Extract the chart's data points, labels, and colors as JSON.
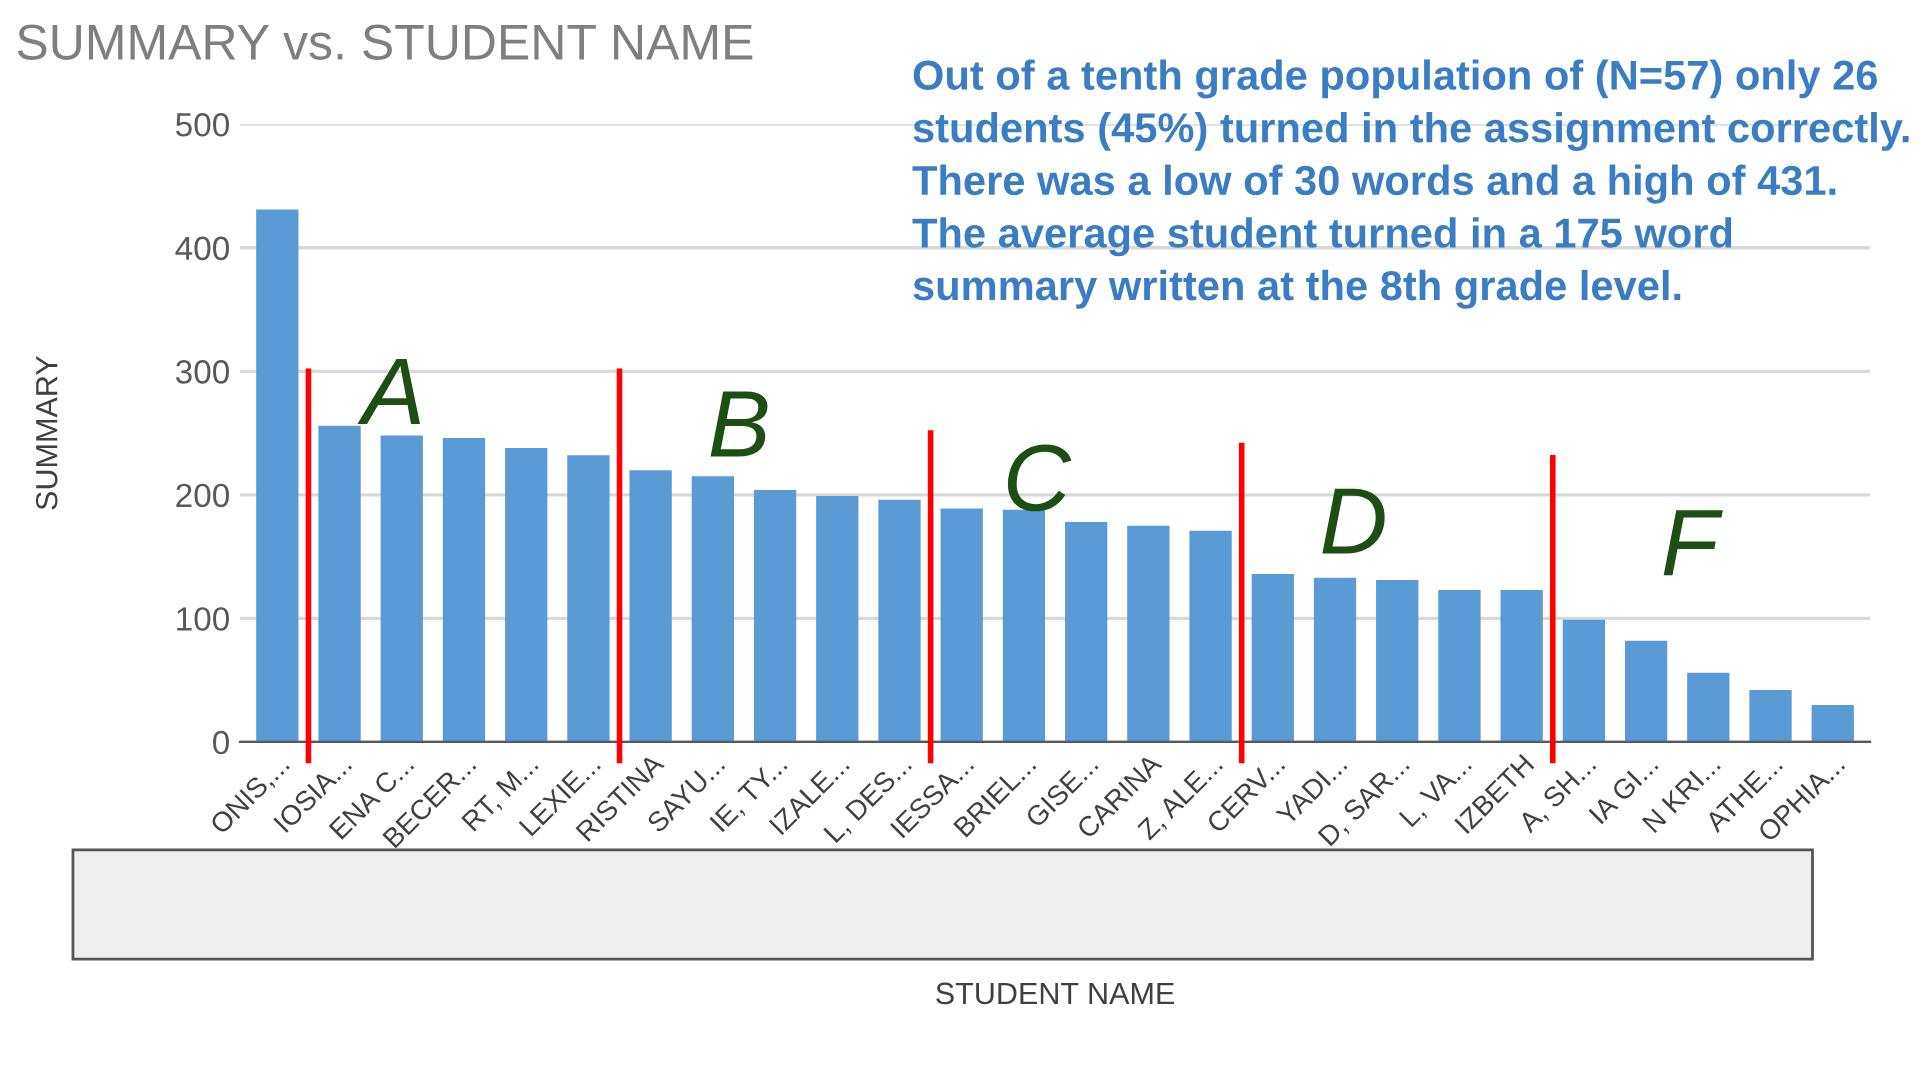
{
  "chart_data": {
    "type": "bar",
    "title": "SUMMARY vs. STUDENT NAME",
    "xlabel": "STUDENT NAME",
    "ylabel": "SUMMARY",
    "categories": [
      "ONIS,...",
      "IOSIA...",
      "ENA C...",
      "BECER...",
      "RT, M...",
      "LEXIE...",
      "RISTINA",
      "SAYU...",
      "IE, TY...",
      "IZALE...",
      "L, DES...",
      "IESSA...",
      "BRIEL...",
      "GISE...",
      "CARINA",
      "Z, ALE...",
      "CERV...",
      "YADI...",
      "D, SAR...",
      "L, VA...",
      "IZBETH",
      "A, SH...",
      "IA GI...",
      "N KRI...",
      "ATHE...",
      "OPHIA..."
    ],
    "values": [
      431,
      256,
      248,
      246,
      238,
      232,
      220,
      215,
      204,
      199,
      196,
      189,
      188,
      178,
      175,
      171,
      136,
      133,
      131,
      123,
      123,
      99,
      82,
      56,
      42,
      30
    ],
    "color": "#5b9bd5",
    "ylim": [
      0,
      500
    ],
    "yticks": [
      0,
      100,
      200,
      300,
      400,
      500
    ],
    "grid": "y",
    "annotations": [
      "Out of a tenth grade population of (N=57) only 26 students (45%) turned in the assignment correctly. There was a low of 30 words and a high of 431. The average student turned in a 175 word summary written at the 8th grade level.",
      "A",
      "B",
      "C",
      "D",
      "F"
    ]
  }
}
